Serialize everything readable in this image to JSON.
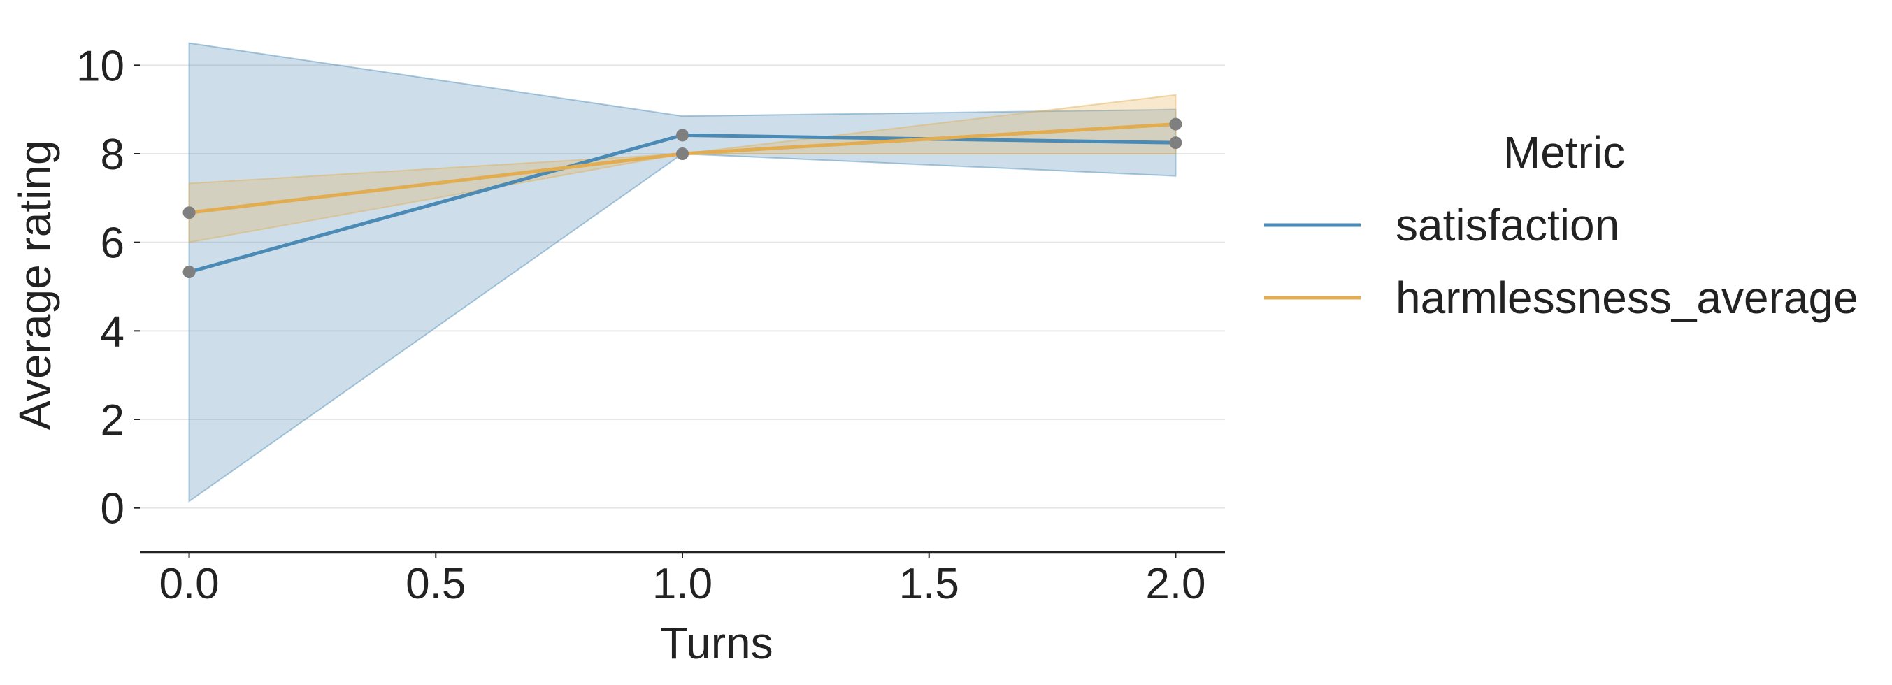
{
  "chart_data": {
    "type": "line",
    "xlabel": "Turns",
    "ylabel": "Average rating",
    "xlim": [
      -0.1,
      2.1
    ],
    "ylim": [
      -1,
      11
    ],
    "xticks": [
      0.0,
      0.5,
      1.0,
      1.5,
      2.0
    ],
    "xtick_labels": [
      "0.0",
      "0.5",
      "1.0",
      "1.5",
      "2.0"
    ],
    "yticks": [
      0,
      2,
      4,
      6,
      8,
      10
    ],
    "ytick_labels": [
      "0",
      "2",
      "4",
      "6",
      "8",
      "10"
    ],
    "grid": "horizontal",
    "legend": {
      "title": "Metric",
      "placement": "right, outside plot"
    },
    "series": [
      {
        "name": "satisfaction",
        "color": "#4a8ab5",
        "x": [
          0,
          1,
          2
        ],
        "y": [
          5.33,
          8.42,
          8.25
        ],
        "ci_lower": [
          0.15,
          8.0,
          7.5
        ],
        "ci_upper": [
          10.5,
          8.85,
          9.0
        ]
      },
      {
        "name": "harmlessness_average",
        "color": "#e2ac50",
        "x": [
          0,
          1,
          2
        ],
        "y": [
          6.67,
          8.0,
          8.67
        ],
        "ci_lower": [
          6.0,
          8.0,
          8.0
        ],
        "ci_upper": [
          7.33,
          8.0,
          9.33
        ]
      }
    ],
    "marker_color": "#7f7f7f"
  }
}
